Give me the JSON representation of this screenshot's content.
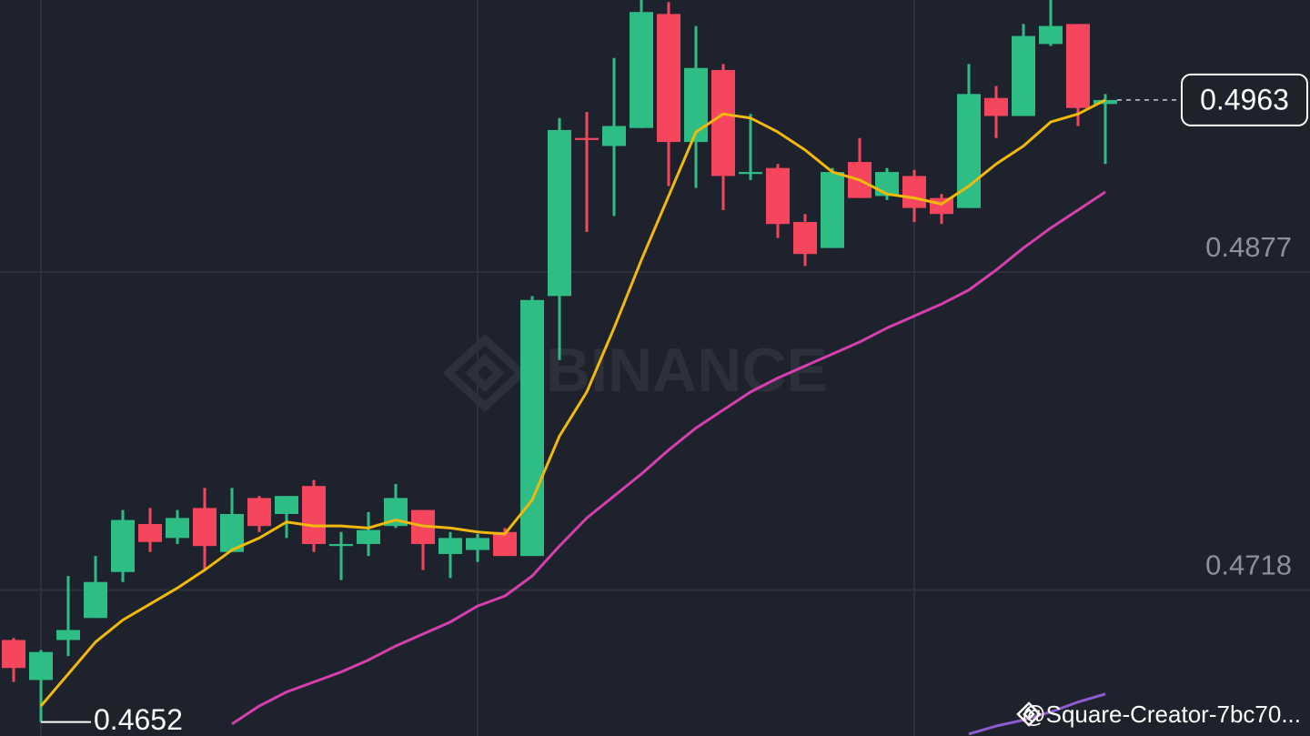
{
  "chart_data": {
    "type": "candlestick",
    "candles": {
      "open": [
        0.4693,
        0.4673,
        0.4693,
        0.4704,
        0.4727,
        0.4751,
        0.4744,
        0.4759,
        0.4737,
        0.4764,
        0.4756,
        0.477,
        0.474,
        0.4741,
        0.475,
        0.4758,
        0.4736,
        0.4738,
        0.4747,
        0.4735,
        0.4865,
        0.4944,
        0.494,
        0.4949,
        0.5006,
        0.4942,
        0.4978,
        0.4926,
        0.4929,
        0.4902,
        0.4889,
        0.4932,
        0.4915,
        0.4925,
        0.4914,
        0.4909,
        0.4964,
        0.4955,
        0.4991,
        0.5001,
        0.4961
      ],
      "high": [
        0.4694,
        0.4688,
        0.4725,
        0.4735,
        0.4758,
        0.4759,
        0.4758,
        0.4769,
        0.4769,
        0.4765,
        0.4765,
        0.4773,
        0.4747,
        0.4757,
        0.4771,
        0.4758,
        0.4747,
        0.4746,
        0.4749,
        0.4865,
        0.4954,
        0.4957,
        0.4984,
        0.5013,
        0.5012,
        0.5,
        0.4981,
        0.4956,
        0.4931,
        0.4906,
        0.4929,
        0.4944,
        0.4929,
        0.4928,
        0.4916,
        0.4981,
        0.497,
        0.5001,
        0.5013,
        0.5001,
        0.4966
      ],
      "low": [
        0.4672,
        0.4652,
        0.4685,
        0.4704,
        0.4722,
        0.4737,
        0.4741,
        0.4728,
        0.4737,
        0.4747,
        0.4744,
        0.4737,
        0.4723,
        0.4735,
        0.4749,
        0.4728,
        0.4724,
        0.4732,
        0.4735,
        0.4735,
        0.4833,
        0.4897,
        0.4905,
        0.4949,
        0.492,
        0.4919,
        0.4908,
        0.4923,
        0.4894,
        0.488,
        0.4889,
        0.4914,
        0.4913,
        0.4902,
        0.4901,
        0.4909,
        0.4944,
        0.4955,
        0.499,
        0.495,
        0.4931
      ],
      "close": [
        0.4679,
        0.4687,
        0.4698,
        0.4722,
        0.4753,
        0.4742,
        0.4754,
        0.474,
        0.4756,
        0.475,
        0.4765,
        0.4741,
        0.4741,
        0.4748,
        0.4764,
        0.4741,
        0.4744,
        0.4744,
        0.4735,
        0.4863,
        0.4948,
        0.4943,
        0.495,
        0.5007,
        0.4942,
        0.4979,
        0.4925,
        0.4927,
        0.4901,
        0.4886,
        0.4927,
        0.4914,
        0.4927,
        0.4909,
        0.4906,
        0.4966,
        0.4955,
        0.4995,
        0.5,
        0.4959,
        0.4963
      ]
    },
    "up_color": "#2ebd85",
    "down_color": "#f6465d",
    "series": [
      {
        "color": "#f0b90b",
        "values": [
          null,
          0.466,
          0.4676,
          0.4692,
          0.4703,
          0.4711,
          0.4719,
          0.4728,
          0.4738,
          0.4744,
          0.4752,
          0.475,
          0.475,
          0.4749,
          0.4753,
          0.475,
          0.4749,
          0.4747,
          0.4746,
          0.4763,
          0.4795,
          0.4817,
          0.4849,
          0.4883,
          0.4915,
          0.4947,
          0.4956,
          0.4954,
          0.4947,
          0.4938,
          0.4927,
          0.4923,
          0.4916,
          0.4914,
          0.4911,
          0.492,
          0.4931,
          0.494,
          0.4952,
          0.4956,
          0.4963
        ]
      },
      {
        "color": "#d63fae",
        "values": [
          null,
          null,
          null,
          null,
          null,
          null,
          null,
          null,
          0.4651,
          0.466,
          0.4667,
          0.4672,
          0.4677,
          0.4683,
          0.469,
          0.4696,
          0.4702,
          0.471,
          0.4715,
          0.4725,
          0.474,
          0.4754,
          0.4765,
          0.4776,
          0.4788,
          0.4799,
          0.4808,
          0.4817,
          0.4824,
          0.483,
          0.4836,
          0.4842,
          0.4849,
          0.4855,
          0.4861,
          0.4868,
          0.4878,
          0.4889,
          0.4899,
          0.4908,
          0.4917
        ]
      },
      {
        "color": "#8e5bd0",
        "values": [
          null,
          null,
          null,
          null,
          null,
          null,
          null,
          null,
          null,
          null,
          null,
          null,
          null,
          null,
          null,
          null,
          null,
          null,
          null,
          null,
          null,
          null,
          null,
          null,
          null,
          null,
          null,
          null,
          null,
          null,
          null,
          null,
          null,
          null,
          null,
          0.4646,
          0.465,
          0.4653,
          0.4657,
          0.4662,
          0.4666
        ]
      }
    ],
    "ylim": [
      0.4645,
      0.5013
    ],
    "yticks": [
      0.4877,
      0.4718
    ],
    "grid": true,
    "last_price": 0.4963,
    "low_label": 0.4652,
    "watermark": "BINANCE",
    "credit": "@Square-Creator-7bc70..."
  }
}
